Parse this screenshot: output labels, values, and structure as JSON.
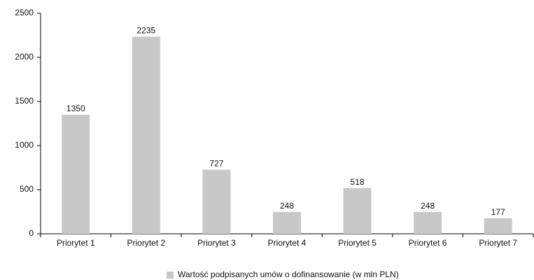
{
  "chart_data": {
    "type": "bar",
    "categories": [
      "Priorytet 1",
      "Priorytet 2",
      "Priorytet 3",
      "Priorytet 4",
      "Priorytet 5",
      "Priorytet 6",
      "Priorytet 7"
    ],
    "series": [
      {
        "name": "Wartość podpisanych umów o dofinansowanie (w mln PLN)",
        "color": "#c8c8c8",
        "values": [
          1350,
          2235,
          727,
          248,
          518,
          248,
          177
        ]
      }
    ],
    "ylim": [
      0,
      2500
    ],
    "yticks": [
      0,
      500,
      1000,
      1500,
      2000,
      2500
    ],
    "grid": false,
    "legend": "bottom"
  }
}
